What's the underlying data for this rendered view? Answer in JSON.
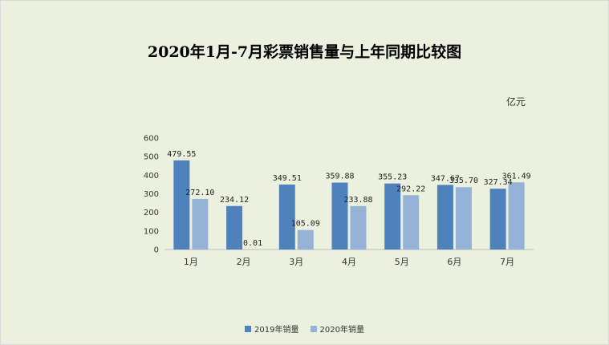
{
  "chart_data": {
    "type": "bar",
    "title": "2020年1月-7月彩票销售量与上年同期比较图",
    "unit": "亿元",
    "categories": [
      "1月",
      "2月",
      "3月",
      "4月",
      "5月",
      "6月",
      "7月"
    ],
    "series": [
      {
        "name": "2019年销量",
        "color": "#4f81bd",
        "values": [
          479.55,
          234.12,
          349.51,
          359.88,
          355.23,
          347.67,
          327.34
        ],
        "labels": [
          "479.55",
          "234.12",
          "349.51",
          "359.88",
          "355.23",
          "347.67",
          "327.34"
        ]
      },
      {
        "name": "2020年销量",
        "color": "#95b3d7",
        "values": [
          272.1,
          0.01,
          105.09,
          233.88,
          292.22,
          335.7,
          361.49
        ],
        "labels": [
          "272.10",
          "0.01",
          "105.09",
          "233.88",
          "292.22",
          "335.70",
          "361.49"
        ]
      }
    ],
    "yticks": [
      "0",
      "100",
      "200",
      "300",
      "400",
      "500",
      "600"
    ],
    "ylim": [
      0,
      600
    ],
    "grid": false,
    "legend_position": "bottom"
  }
}
